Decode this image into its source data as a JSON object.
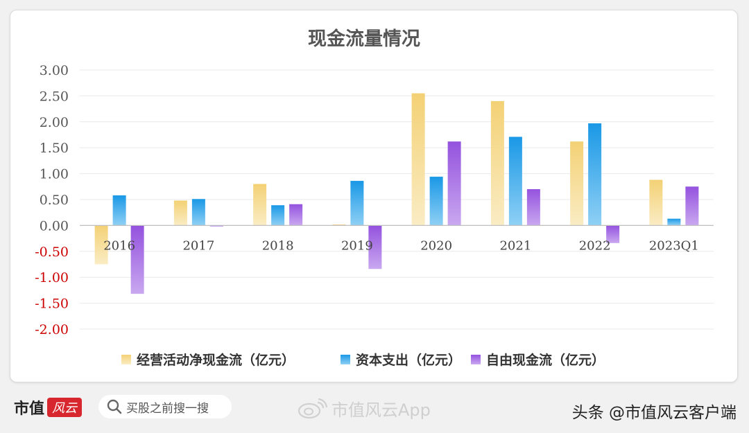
{
  "chart_data": {
    "type": "bar",
    "title": "现金流量情况",
    "categories": [
      "2016",
      "2017",
      "2018",
      "2019",
      "2020",
      "2021",
      "2022",
      "2023Q1"
    ],
    "series": [
      {
        "name": "经营活动净现金流（亿元）",
        "color": "#f5d67e",
        "values": [
          -0.75,
          0.48,
          0.8,
          0.02,
          2.55,
          2.4,
          1.62,
          0.88
        ]
      },
      {
        "name": "资本支出（亿元）",
        "color": "#1e9fe8",
        "values": [
          0.58,
          0.51,
          0.39,
          0.86,
          0.94,
          1.71,
          1.97,
          0.13
        ]
      },
      {
        "name": "自由现金流（亿元）",
        "color": "#9b5ce0",
        "values": [
          -1.32,
          -0.02,
          0.41,
          -0.84,
          1.62,
          0.7,
          -0.34,
          0.75
        ]
      }
    ],
    "ylim": [
      -2.0,
      3.0
    ],
    "yticks": [
      "3.00",
      "2.50",
      "2.00",
      "1.50",
      "1.00",
      "0.50",
      "0.00",
      "-0.50",
      "-1.00",
      "-1.50",
      "-2.00"
    ],
    "negative_tick_color": "#cc0000",
    "positive_tick_color": "#555555",
    "grid": true,
    "legend_position": "bottom",
    "xlabel": "",
    "ylabel": ""
  },
  "footer": {
    "brand": "市值",
    "brand_logo": "风云",
    "search_placeholder": "买股之前搜一搜",
    "weibo_text": "市值风云App",
    "source": "头条 @市值风云客户端"
  }
}
